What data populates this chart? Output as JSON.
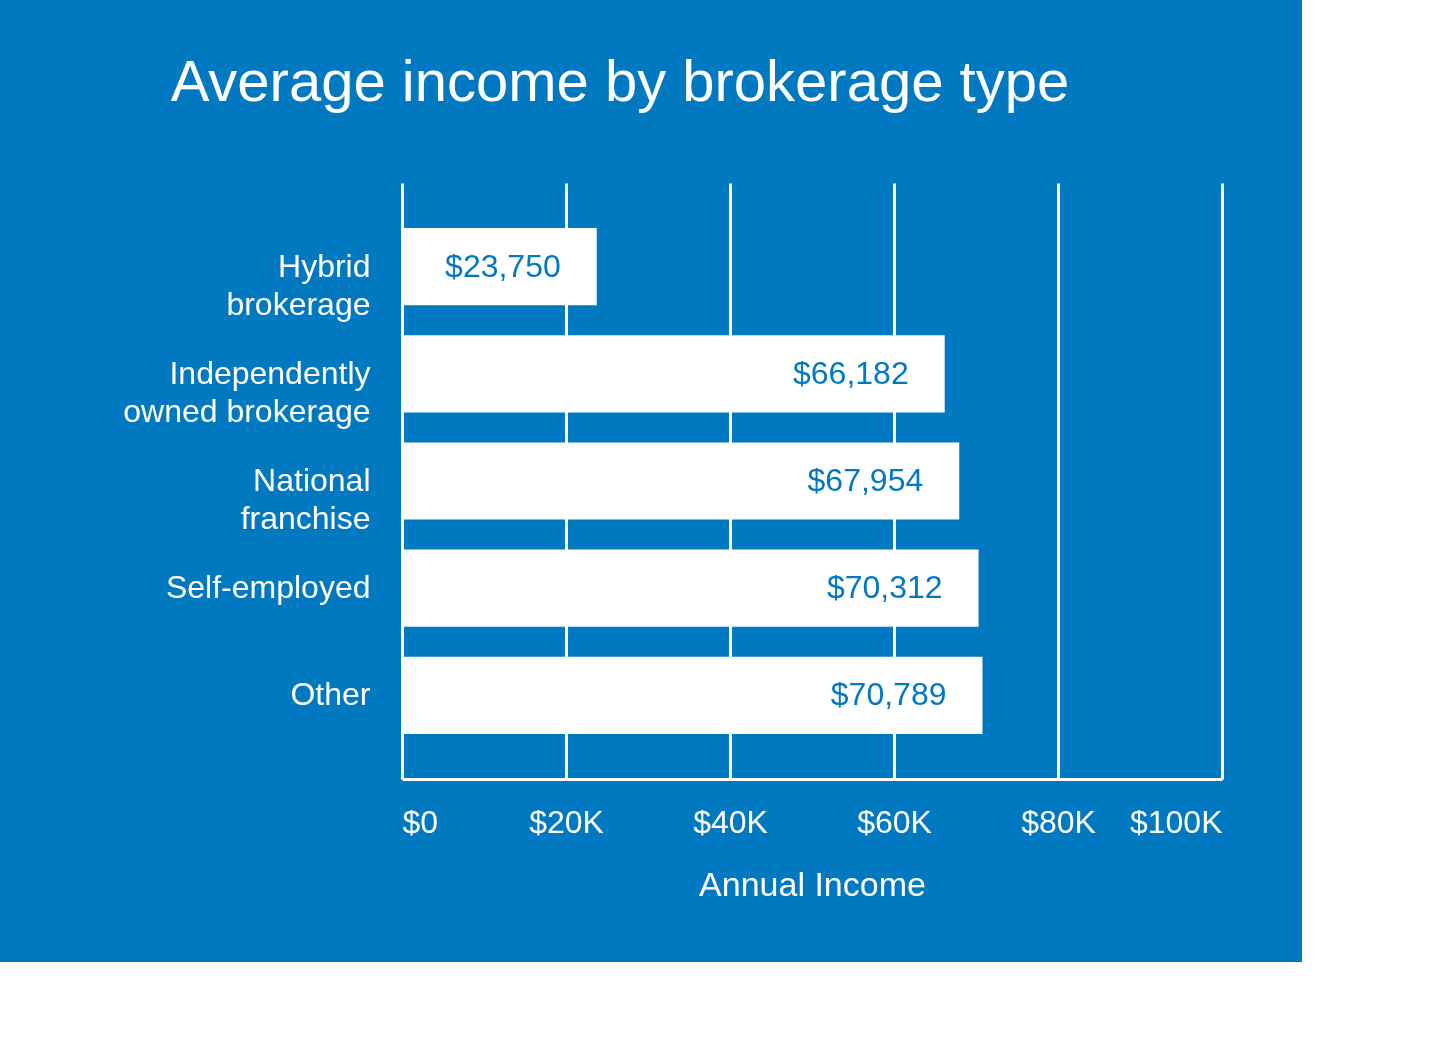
{
  "chart_data": {
    "type": "bar",
    "orientation": "horizontal",
    "title": "Average income by brokerage type",
    "xlabel": "Annual Income",
    "categories": [
      "Hybrid brokerage",
      "Independently owned brokerage",
      "National franchise",
      "Self-employed",
      "Other"
    ],
    "values": [
      23750,
      66182,
      67954,
      70312,
      70789
    ],
    "value_labels": [
      "$23,750",
      "$66,182",
      "$67,954",
      "$70,312",
      "$70,789"
    ],
    "color": "#ffffff",
    "xlim": [
      0,
      100000
    ],
    "xticks": [
      {
        "value": 0,
        "label": "$0"
      },
      {
        "value": 20000,
        "label": "$20K"
      },
      {
        "value": 40000,
        "label": "$40K"
      },
      {
        "value": 60000,
        "label": "$60K"
      },
      {
        "value": 80000,
        "label": "$80K"
      },
      {
        "value": 100000,
        "label": "$100K"
      }
    ],
    "grid": "x"
  }
}
